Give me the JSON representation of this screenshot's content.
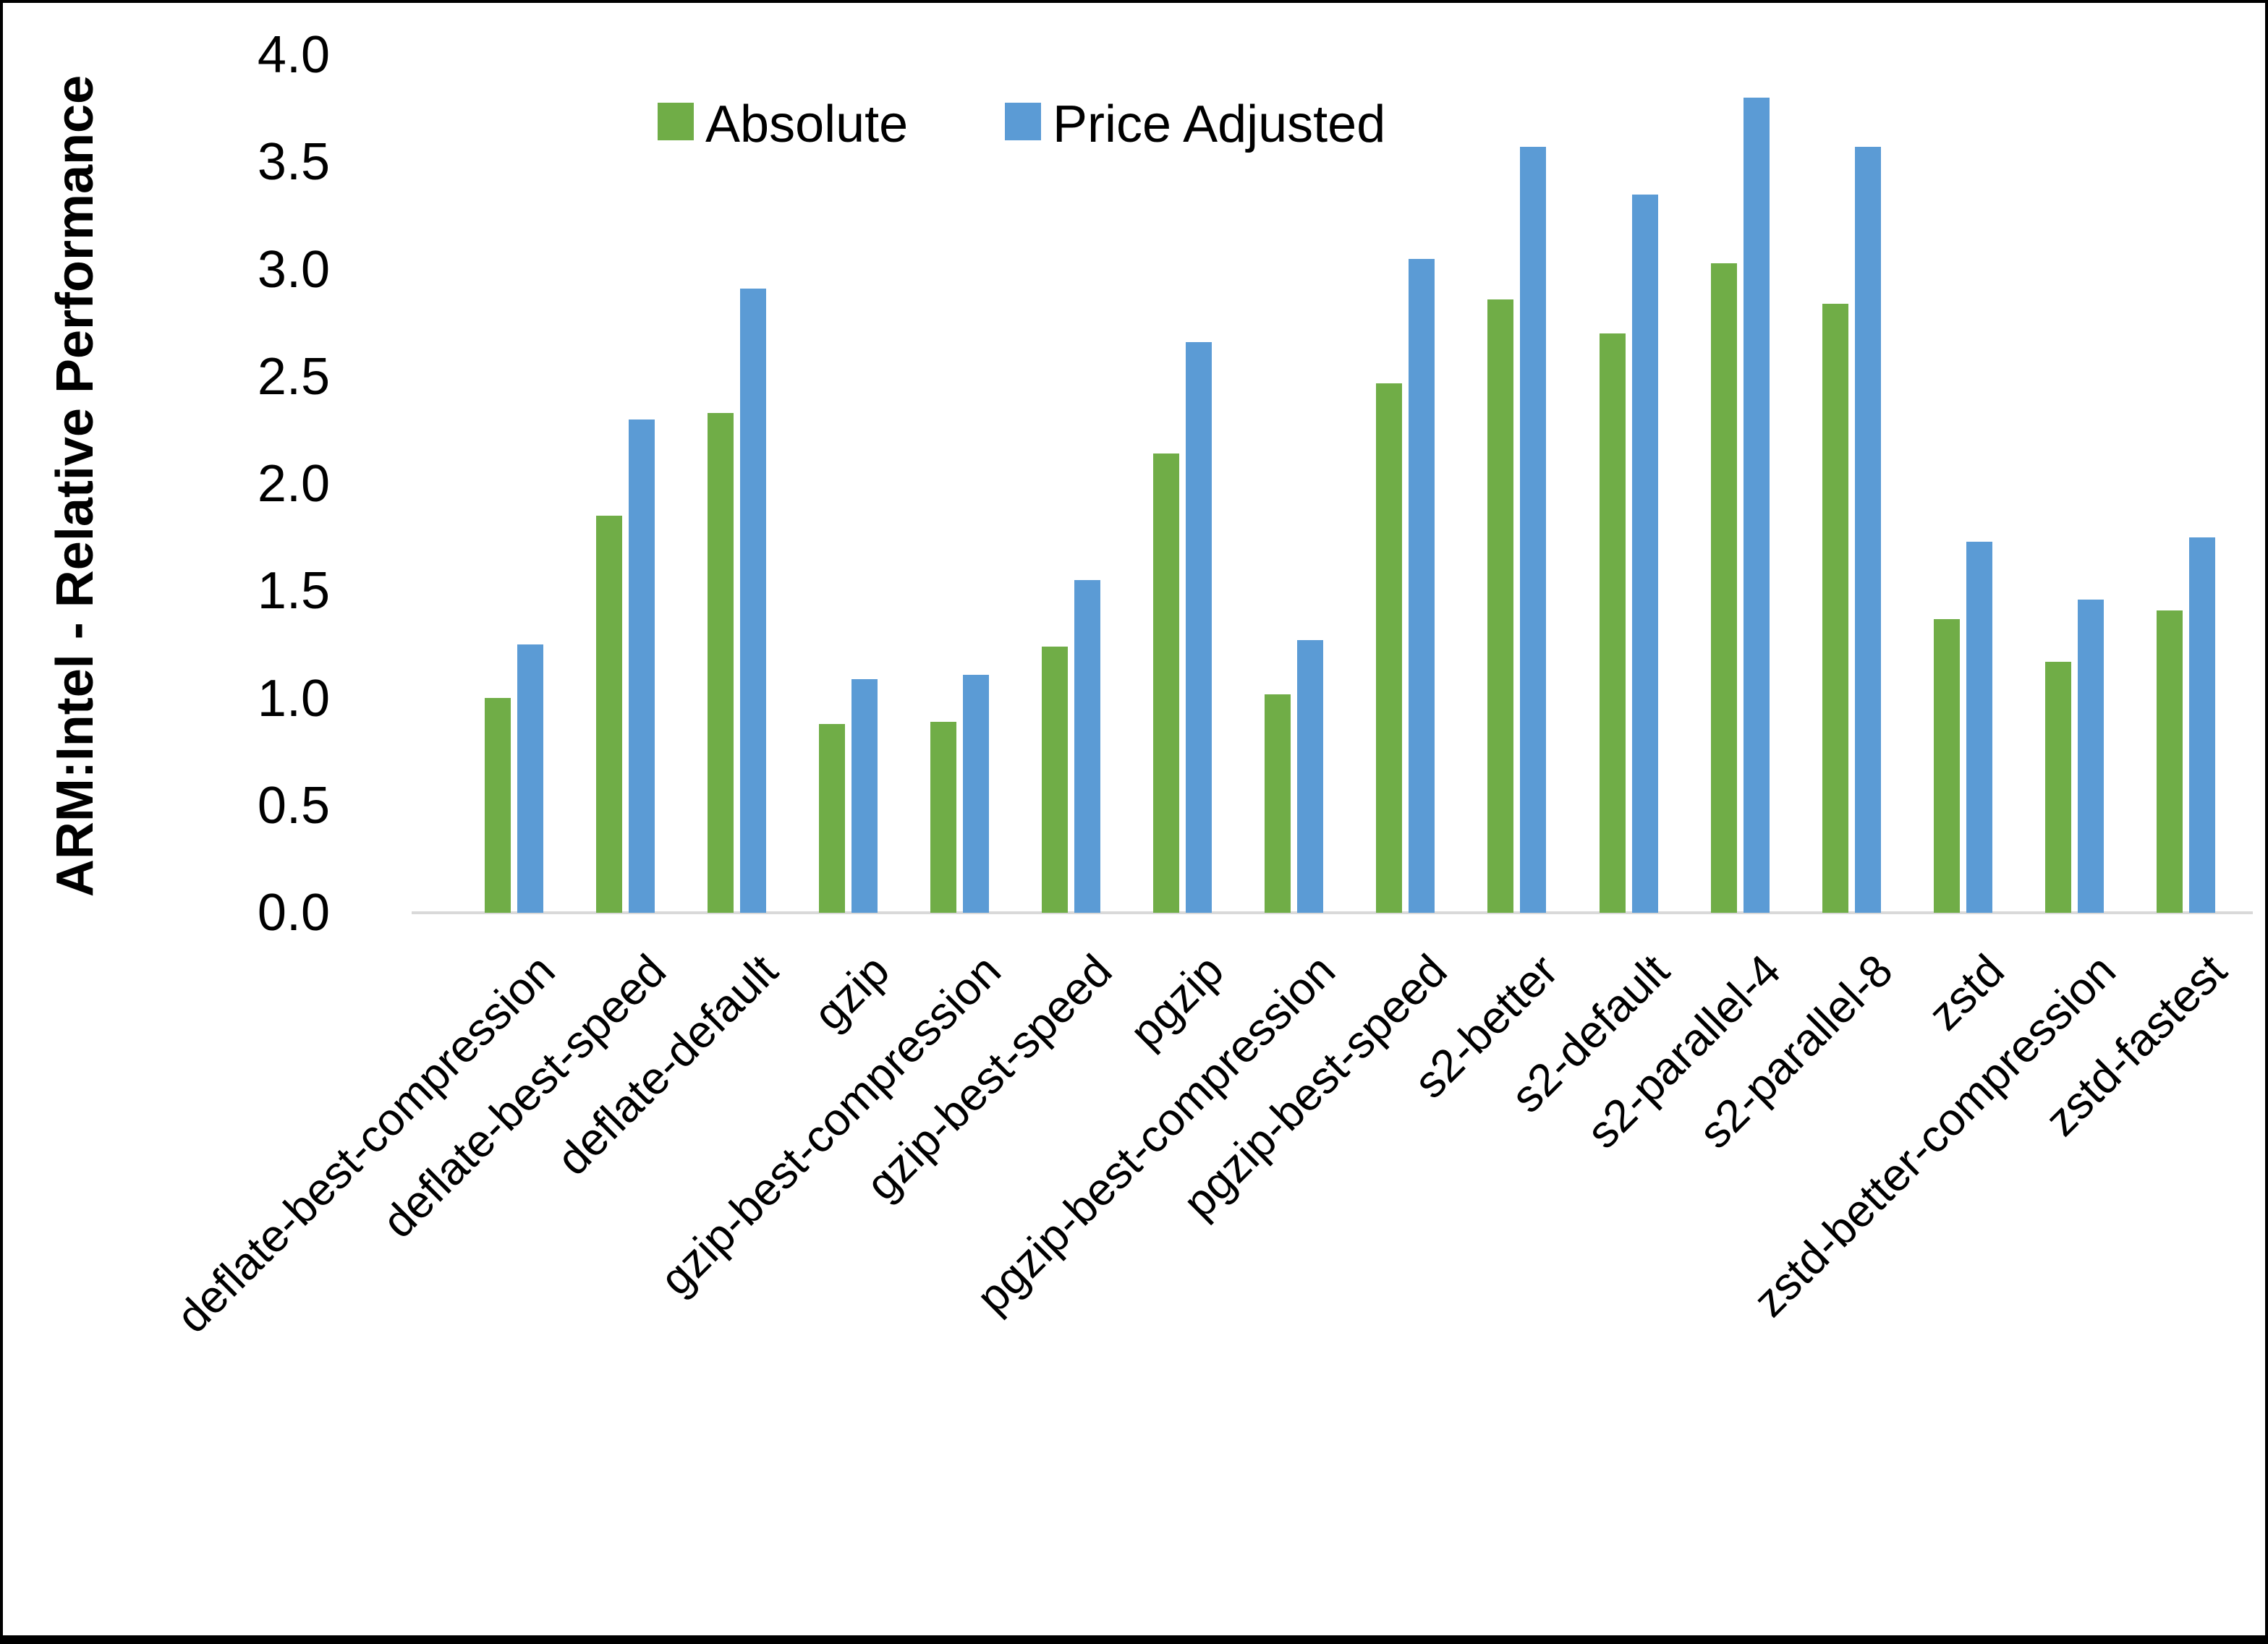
{
  "figure": {
    "y_axis_title": "ARM:Intel - Relative Performance",
    "y_ticks": [
      "4.0",
      "3.5",
      "3.0",
      "2.5",
      "2.0",
      "1.5",
      "1.0",
      "0.5",
      "0.0"
    ],
    "legend": {
      "absolute_label": "Absolute",
      "price_adjusted_label": "Price Adjusted"
    },
    "colors": {
      "absolute": "#70AD47",
      "price_adjusted": "#5B9BD5",
      "axis_line": "#D9D9D9"
    }
  },
  "chart_data": {
    "type": "bar",
    "title": "",
    "xlabel": "",
    "ylabel": "ARM:Intel - Relative Performance",
    "ylim": [
      0,
      4
    ],
    "y_tick_step": 0.5,
    "grid": false,
    "legend_position": "top",
    "categories": [
      "deflate-best-compression",
      "deflate-best-speed",
      "deflate-default",
      "gzip",
      "gzip-best-compression",
      "gzip-best-speed",
      "pgzip",
      "pgzip-best-compression",
      "pgzip-best-speed",
      "s2-better",
      "s2-default",
      "s2-parallel-4",
      "s2-parallel-8",
      "zstd",
      "zstd-better-compression",
      "zstd-fastest"
    ],
    "series": [
      {
        "name": "Absolute",
        "color": "#70AD47",
        "values": [
          1.0,
          1.85,
          2.33,
          0.88,
          0.89,
          1.24,
          2.14,
          1.02,
          2.47,
          2.86,
          2.7,
          3.03,
          2.84,
          1.37,
          1.17,
          1.41
        ]
      },
      {
        "name": "Price Adjusted",
        "color": "#5B9BD5",
        "values": [
          1.25,
          2.3,
          2.91,
          1.09,
          1.11,
          1.55,
          2.66,
          1.27,
          3.05,
          3.57,
          3.35,
          3.8,
          3.57,
          1.73,
          1.46,
          1.75
        ]
      }
    ]
  }
}
